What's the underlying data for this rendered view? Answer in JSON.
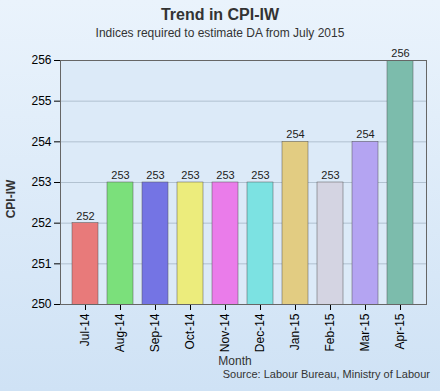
{
  "chart_data": {
    "type": "bar",
    "title": "Trend in CPI-IW",
    "subtitle": "Indices required to estimate DA from July 2015",
    "x_label": "Month",
    "y_label": "CPI-IW",
    "caption": "Source: Labour Bureau, Ministry of Labour",
    "categories": [
      "Jul-14",
      "Aug-14",
      "Sep-14",
      "Oct-14",
      "Nov-14",
      "Dec-14",
      "Jan-15",
      "Feb-15",
      "Mar-15",
      "Apr-15"
    ],
    "values": [
      252,
      253,
      253,
      253,
      253,
      253,
      254,
      253,
      254,
      256
    ],
    "colors": [
      "#e87a7a",
      "#7be07b",
      "#7474e4",
      "#ecec7c",
      "#ea7cea",
      "#7ce2e2",
      "#e2cc82",
      "#d4d4e2",
      "#b4a4f2",
      "#7cbcac"
    ],
    "ylim": [
      250,
      256
    ],
    "yticks": [
      250,
      251,
      252,
      253,
      254,
      255,
      256
    ],
    "grid": true,
    "data_labels": true
  }
}
